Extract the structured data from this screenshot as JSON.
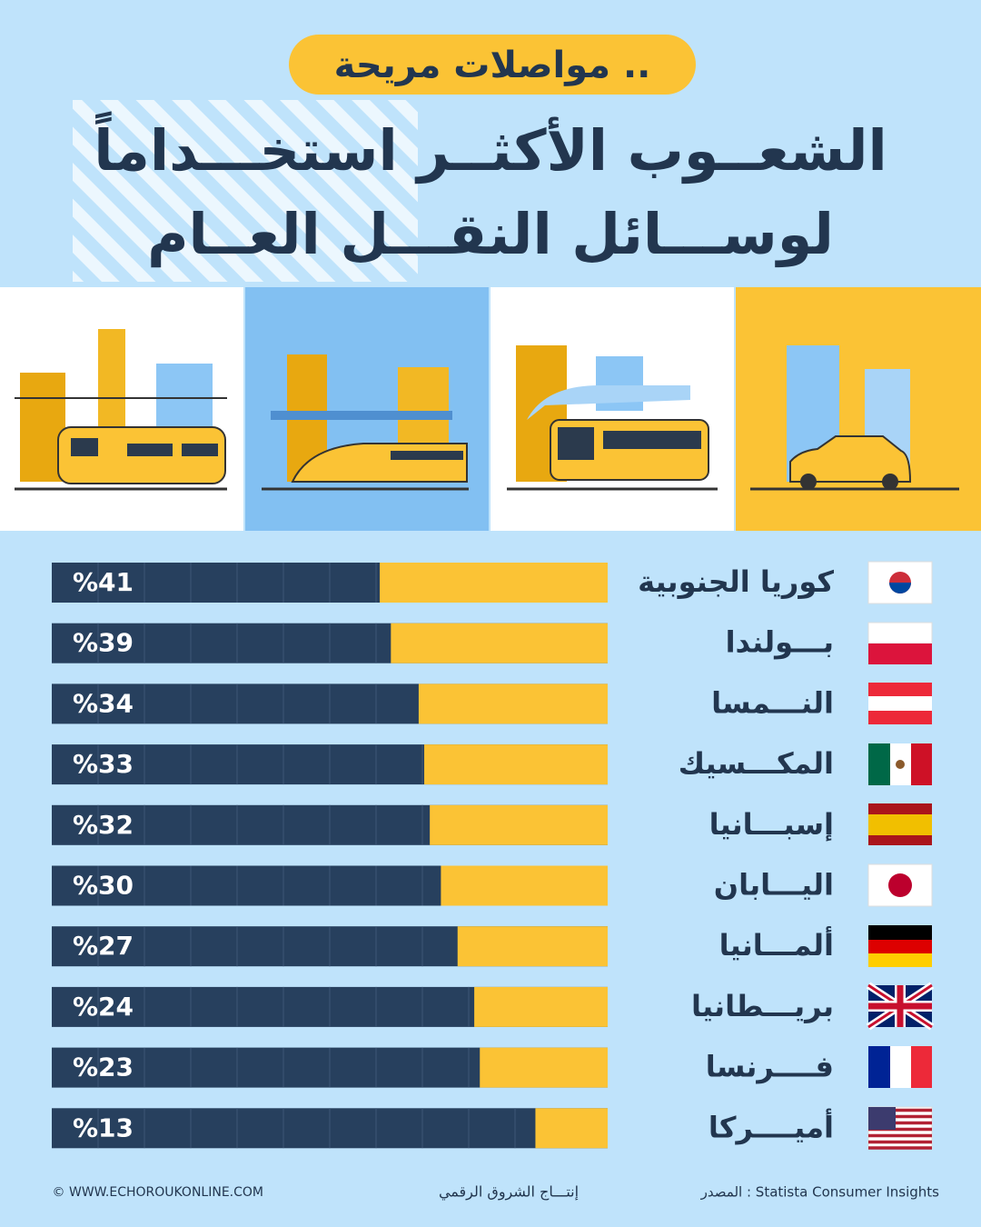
{
  "header_tag": "مواصلات مريحة ..",
  "title_lines": [
    "الشعــوب الأكثــر استخـــداماً",
    "لوســـائل النقـــل العــام"
  ],
  "chart_data": {
    "type": "bar",
    "orientation": "horizontal",
    "categories": [
      "كوريا الجنوبية",
      "بـــولندا",
      "النـــمسا",
      "المكـــسيك",
      "إسبـــانيا",
      "اليـــابان",
      "ألمـــانيا",
      "بريـــطانيا",
      "فــــرنسا",
      "أميــــركا"
    ],
    "values": [
      41,
      39,
      34,
      33,
      32,
      30,
      27,
      24,
      23,
      13
    ],
    "value_labels": [
      "%41",
      "%39",
      "%34",
      "%33",
      "%32",
      "%30",
      "%27",
      "%24",
      "%23",
      "%13"
    ],
    "xlim": [
      0,
      100
    ],
    "color": "#fbc335",
    "track_color": "#27405e"
  },
  "footer": {
    "website": "© WWW.ECHOROUKONLINE.COM",
    "producer": "إنتـــاج الشروق الرقمي",
    "source": "المصدر : Statista Consumer Insights"
  }
}
